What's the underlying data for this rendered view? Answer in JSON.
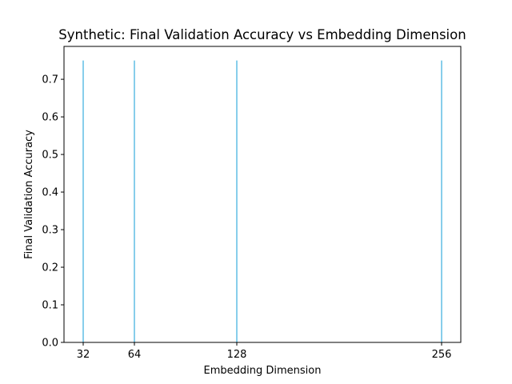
{
  "chart_data": {
    "type": "bar",
    "title": "Synthetic: Final Validation Accuracy vs Embedding Dimension",
    "xlabel": "Embedding Dimension",
    "ylabel": "Final Validation Accuracy",
    "x": [
      32,
      64,
      128,
      256
    ],
    "values": [
      0.75,
      0.75,
      0.75,
      0.75
    ],
    "bar_width": 1,
    "xlim": [
      20,
      268
    ],
    "ylim": [
      0,
      0.7875
    ],
    "xticks": [
      32,
      64,
      128,
      256
    ],
    "yticks": [
      0.0,
      0.1,
      0.2,
      0.3,
      0.4,
      0.5,
      0.6,
      0.7
    ],
    "ytick_labels": [
      "0.0",
      "0.1",
      "0.2",
      "0.3",
      "0.4",
      "0.5",
      "0.6",
      "0.7"
    ],
    "grid": false,
    "bar_color": "#87ceeb"
  }
}
